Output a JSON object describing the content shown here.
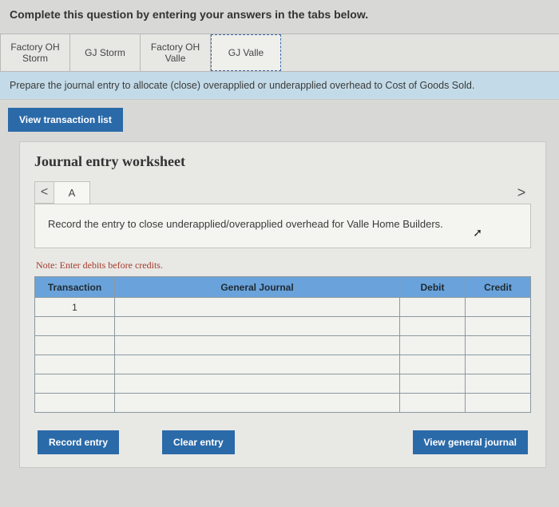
{
  "page": {
    "title": "Complete this question by entering your answers in the tabs below."
  },
  "tabs": [
    {
      "label": "Factory OH Storm"
    },
    {
      "label": "GJ Storm"
    },
    {
      "label": "Factory OH Valle"
    },
    {
      "label": "GJ Valle",
      "selected": true
    }
  ],
  "instruction": "Prepare the journal entry to allocate (close) overapplied or underapplied overhead to Cost of Goods Sold.",
  "buttons": {
    "view_transaction_list": "View transaction list",
    "record_entry": "Record entry",
    "clear_entry": "Clear entry",
    "view_general_journal": "View general journal"
  },
  "worksheet": {
    "title": "Journal entry worksheet",
    "nav_prev": "<",
    "nav_next": ">",
    "subtabs": [
      {
        "label": "A"
      }
    ],
    "record_prompt": "Record the entry to close underapplied/overapplied overhead for Valle Home Builders.",
    "note": "Note: Enter debits before credits.",
    "table": {
      "headers": {
        "transaction": "Transaction",
        "general_journal": "General Journal",
        "debit": "Debit",
        "credit": "Credit"
      },
      "rows": [
        {
          "transaction": "1",
          "general_journal": "",
          "debit": "",
          "credit": ""
        },
        {
          "transaction": "",
          "general_journal": "",
          "debit": "",
          "credit": ""
        },
        {
          "transaction": "",
          "general_journal": "",
          "debit": "",
          "credit": ""
        },
        {
          "transaction": "",
          "general_journal": "",
          "debit": "",
          "credit": ""
        },
        {
          "transaction": "",
          "general_journal": "",
          "debit": "",
          "credit": ""
        },
        {
          "transaction": "",
          "general_journal": "",
          "debit": "",
          "credit": ""
        }
      ]
    }
  },
  "colors": {
    "tab_selected_border": "#3a6aa8",
    "instruction_bg": "#c3dbe8",
    "btn_blue": "#2b6aa8",
    "table_header_bg": "#6aa3db",
    "note_color": "#a43a2a",
    "panel_bg": "#e8e8e5",
    "body_bg": "#d8d9d6"
  }
}
